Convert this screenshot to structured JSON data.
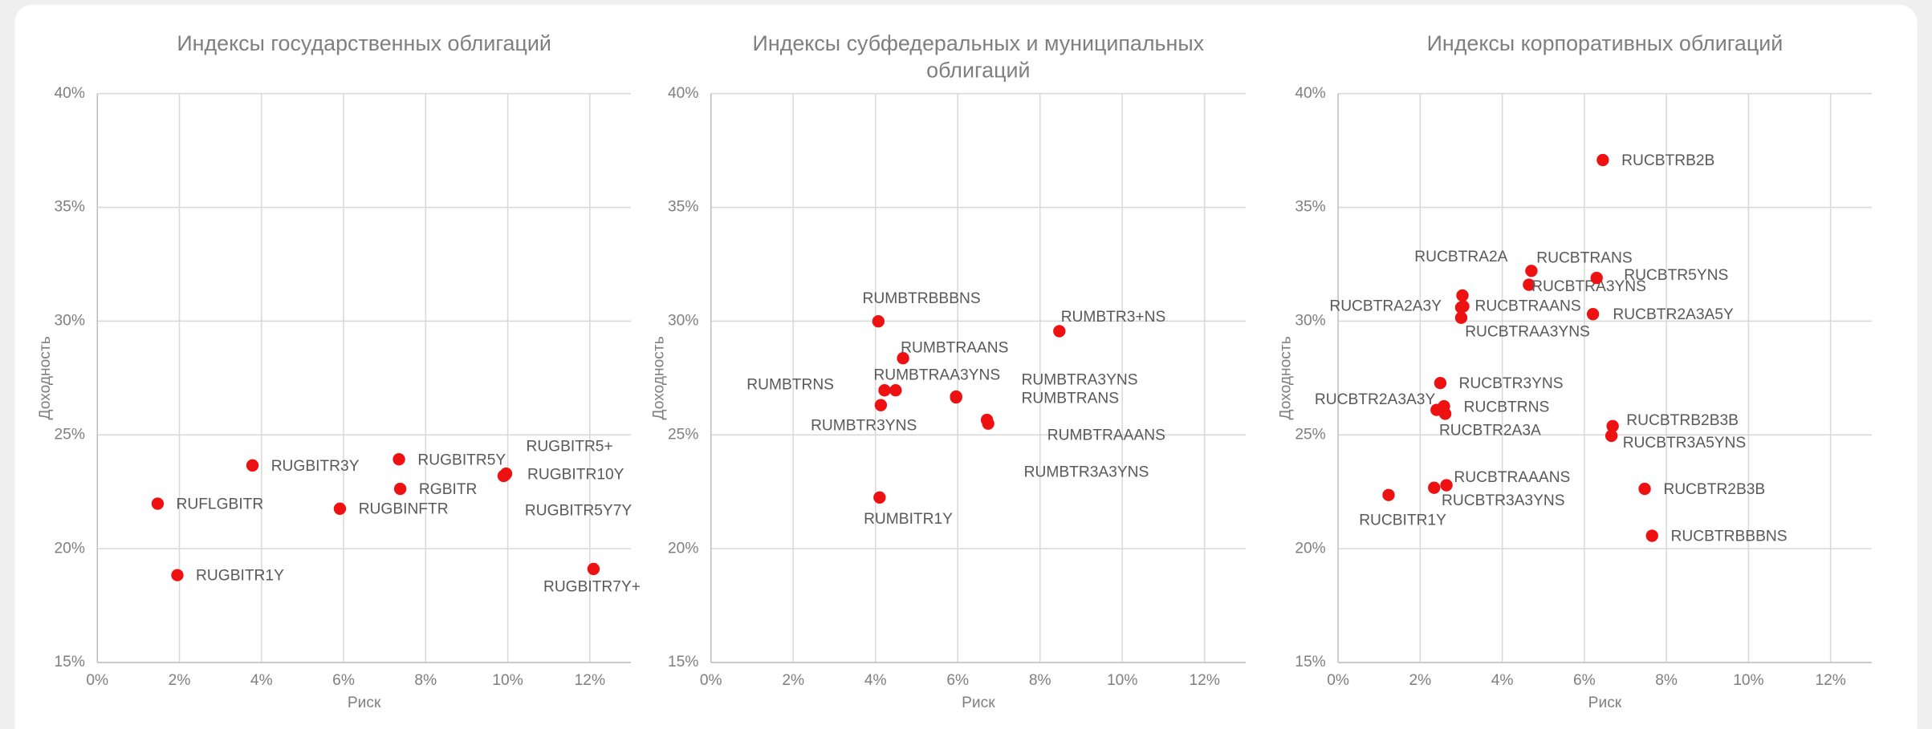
{
  "chart_data": [
    {
      "type": "scatter",
      "title": "Индексы государственных облигаций",
      "x_label": "Риск",
      "y_label": "Доходность",
      "color": "#ee1111",
      "grid": true,
      "xlim": [
        0,
        13
      ],
      "ylim": [
        15,
        40
      ],
      "xticks": [
        {
          "value": 0,
          "label": "0%"
        },
        {
          "value": 2,
          "label": "2%"
        },
        {
          "value": 4,
          "label": "4%"
        },
        {
          "value": 6,
          "label": "6%"
        },
        {
          "value": 8,
          "label": "8%"
        },
        {
          "value": 10,
          "label": "10%"
        },
        {
          "value": 12,
          "label": "12%"
        }
      ],
      "yticks": [
        {
          "value": 15,
          "label": "15%"
        },
        {
          "value": 20,
          "label": "20%"
        },
        {
          "value": 25,
          "label": "25%"
        },
        {
          "value": 30,
          "label": "30%"
        },
        {
          "value": 35,
          "label": "35%"
        },
        {
          "value": 40,
          "label": "40%"
        }
      ],
      "point_labels": [
        "RUFLGBITR",
        "RUGBITR1Y",
        "RUGBITR3Y",
        "RUGBINFTR",
        "RUGBITR5Y",
        "RGBITR",
        "RUGBITR10Y",
        "RUGBITR5+",
        "RUGBITR5Y7Y",
        "RUGBITR7Y+"
      ],
      "x": [
        1.47,
        1.95,
        3.78,
        5.91,
        7.35,
        7.38,
        9.93,
        9.96,
        9.9,
        12.09
      ],
      "values": [
        21.98,
        18.84,
        23.66,
        21.76,
        23.93,
        22.63,
        23.23,
        23.3,
        23.2,
        19.11
      ]
    },
    {
      "type": "scatter",
      "title": "Индексы субфедеральных и муниципальных облигаций",
      "x_label": "Риск",
      "y_label": "Доходность",
      "color": "#ee1111",
      "grid": true,
      "xlim": [
        0,
        13
      ],
      "ylim": [
        15,
        40
      ],
      "xticks": [
        {
          "value": 0,
          "label": "0%"
        },
        {
          "value": 2,
          "label": "2%"
        },
        {
          "value": 4,
          "label": "4%"
        },
        {
          "value": 6,
          "label": "6%"
        },
        {
          "value": 8,
          "label": "8%"
        },
        {
          "value": 10,
          "label": "10%"
        },
        {
          "value": 12,
          "label": "12%"
        }
      ],
      "yticks": [
        {
          "value": 15,
          "label": "15%"
        },
        {
          "value": 20,
          "label": "20%"
        },
        {
          "value": 25,
          "label": "25%"
        },
        {
          "value": 30,
          "label": "30%"
        },
        {
          "value": 35,
          "label": "35%"
        },
        {
          "value": 40,
          "label": "40%"
        }
      ],
      "point_labels": [
        "RUMBTRBBBNS",
        "RUMBTR3+NS",
        "RUMBTRAANS",
        "RUMBTRNS",
        "RUMBTRAA3YNS",
        "RUMBTR3YNS",
        "RUMBTRA3YNS",
        "RUMBTRANS",
        "RUMBTRAAANS",
        "RUMBTR3A3YNS",
        "RUMBITR1Y"
      ],
      "x": [
        4.07,
        8.47,
        4.67,
        4.22,
        4.49,
        4.13,
        5.96,
        5.96,
        6.71,
        6.74,
        4.1
      ],
      "values": [
        29.99,
        29.56,
        28.37,
        26.96,
        26.96,
        26.31,
        26.69,
        26.65,
        25.66,
        25.5,
        22.25
      ]
    },
    {
      "type": "scatter",
      "title": "Индексы корпоративных облигаций",
      "x_label": "Риск",
      "y_label": "Доходность",
      "color": "#ee1111",
      "grid": true,
      "xlim": [
        0,
        13
      ],
      "ylim": [
        15,
        40
      ],
      "xticks": [
        {
          "value": 0,
          "label": "0%"
        },
        {
          "value": 2,
          "label": "2%"
        },
        {
          "value": 4,
          "label": "4%"
        },
        {
          "value": 6,
          "label": "6%"
        },
        {
          "value": 8,
          "label": "8%"
        },
        {
          "value": 10,
          "label": "10%"
        },
        {
          "value": 12,
          "label": "12%"
        }
      ],
      "yticks": [
        {
          "value": 15,
          "label": "15%"
        },
        {
          "value": 20,
          "label": "20%"
        },
        {
          "value": 25,
          "label": "25%"
        },
        {
          "value": 30,
          "label": "30%"
        },
        {
          "value": 35,
          "label": "35%"
        },
        {
          "value": 40,
          "label": "40%"
        }
      ],
      "point_labels": [
        "RUCBTRB2B",
        "RUCBTRANS",
        "RUCBTRA3YNS",
        "RUCBTR5YNS",
        "RUCBTRA2A",
        "RUCBTRA2A3Y",
        "RUCBTRAANS",
        "RUCBTRAA3YNS",
        "RUCBTR2A3A5Y",
        "RUCBTR3YNS",
        "RUCBTRNS",
        "RUCBTR2A3A3Y",
        "RUCBTR2A3A",
        "RUCBTRB2B3B",
        "RUCBTR3A5YNS",
        "RUCBTRAAANS",
        "RUCBTR3A3YNS",
        "RUCBITR1Y",
        "RUCBTR2B3B",
        "RUCBTRBBBNS"
      ],
      "x": [
        6.45,
        4.71,
        4.65,
        6.3,
        3.03,
        3.0,
        3.05,
        3.0,
        6.21,
        2.49,
        2.58,
        2.4,
        2.61,
        6.69,
        6.66,
        2.64,
        2.34,
        1.23,
        7.47,
        7.65
      ],
      "values": [
        37.08,
        32.21,
        31.6,
        31.9,
        31.13,
        30.6,
        30.65,
        30.15,
        30.31,
        27.28,
        26.26,
        26.1,
        25.93,
        25.39,
        24.96,
        22.79,
        22.68,
        22.36,
        22.63,
        20.57
      ]
    }
  ]
}
